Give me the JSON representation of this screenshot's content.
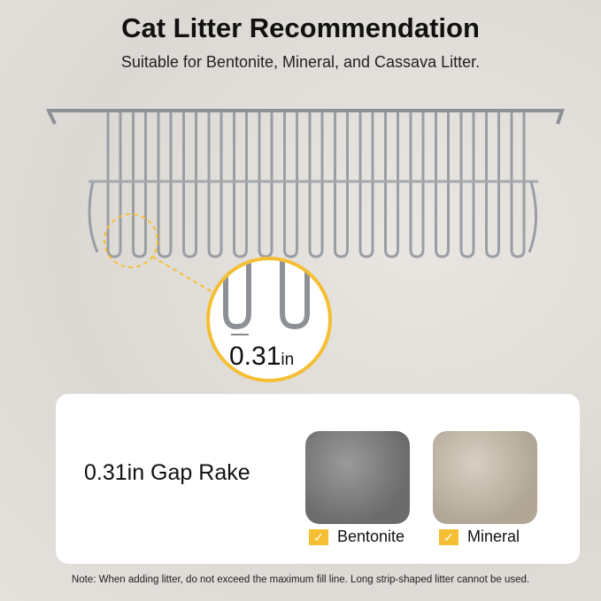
{
  "title": "Cat Litter Recommendation",
  "subtitle": "Suitable for Bentonite, Mineral, and Cassava Litter.",
  "magnifier": {
    "value": "0.31",
    "unit": "in"
  },
  "card": {
    "gap_label": "0.31in Gap Rake",
    "items": [
      {
        "label": "Bentonite",
        "check": "✓"
      },
      {
        "label": "Mineral",
        "check": "✓"
      }
    ]
  },
  "note": "Note: When adding litter, do not exceed the maximum fill line. Long strip-shaped litter cannot be used.",
  "colors": {
    "accent": "#f5bf34"
  }
}
